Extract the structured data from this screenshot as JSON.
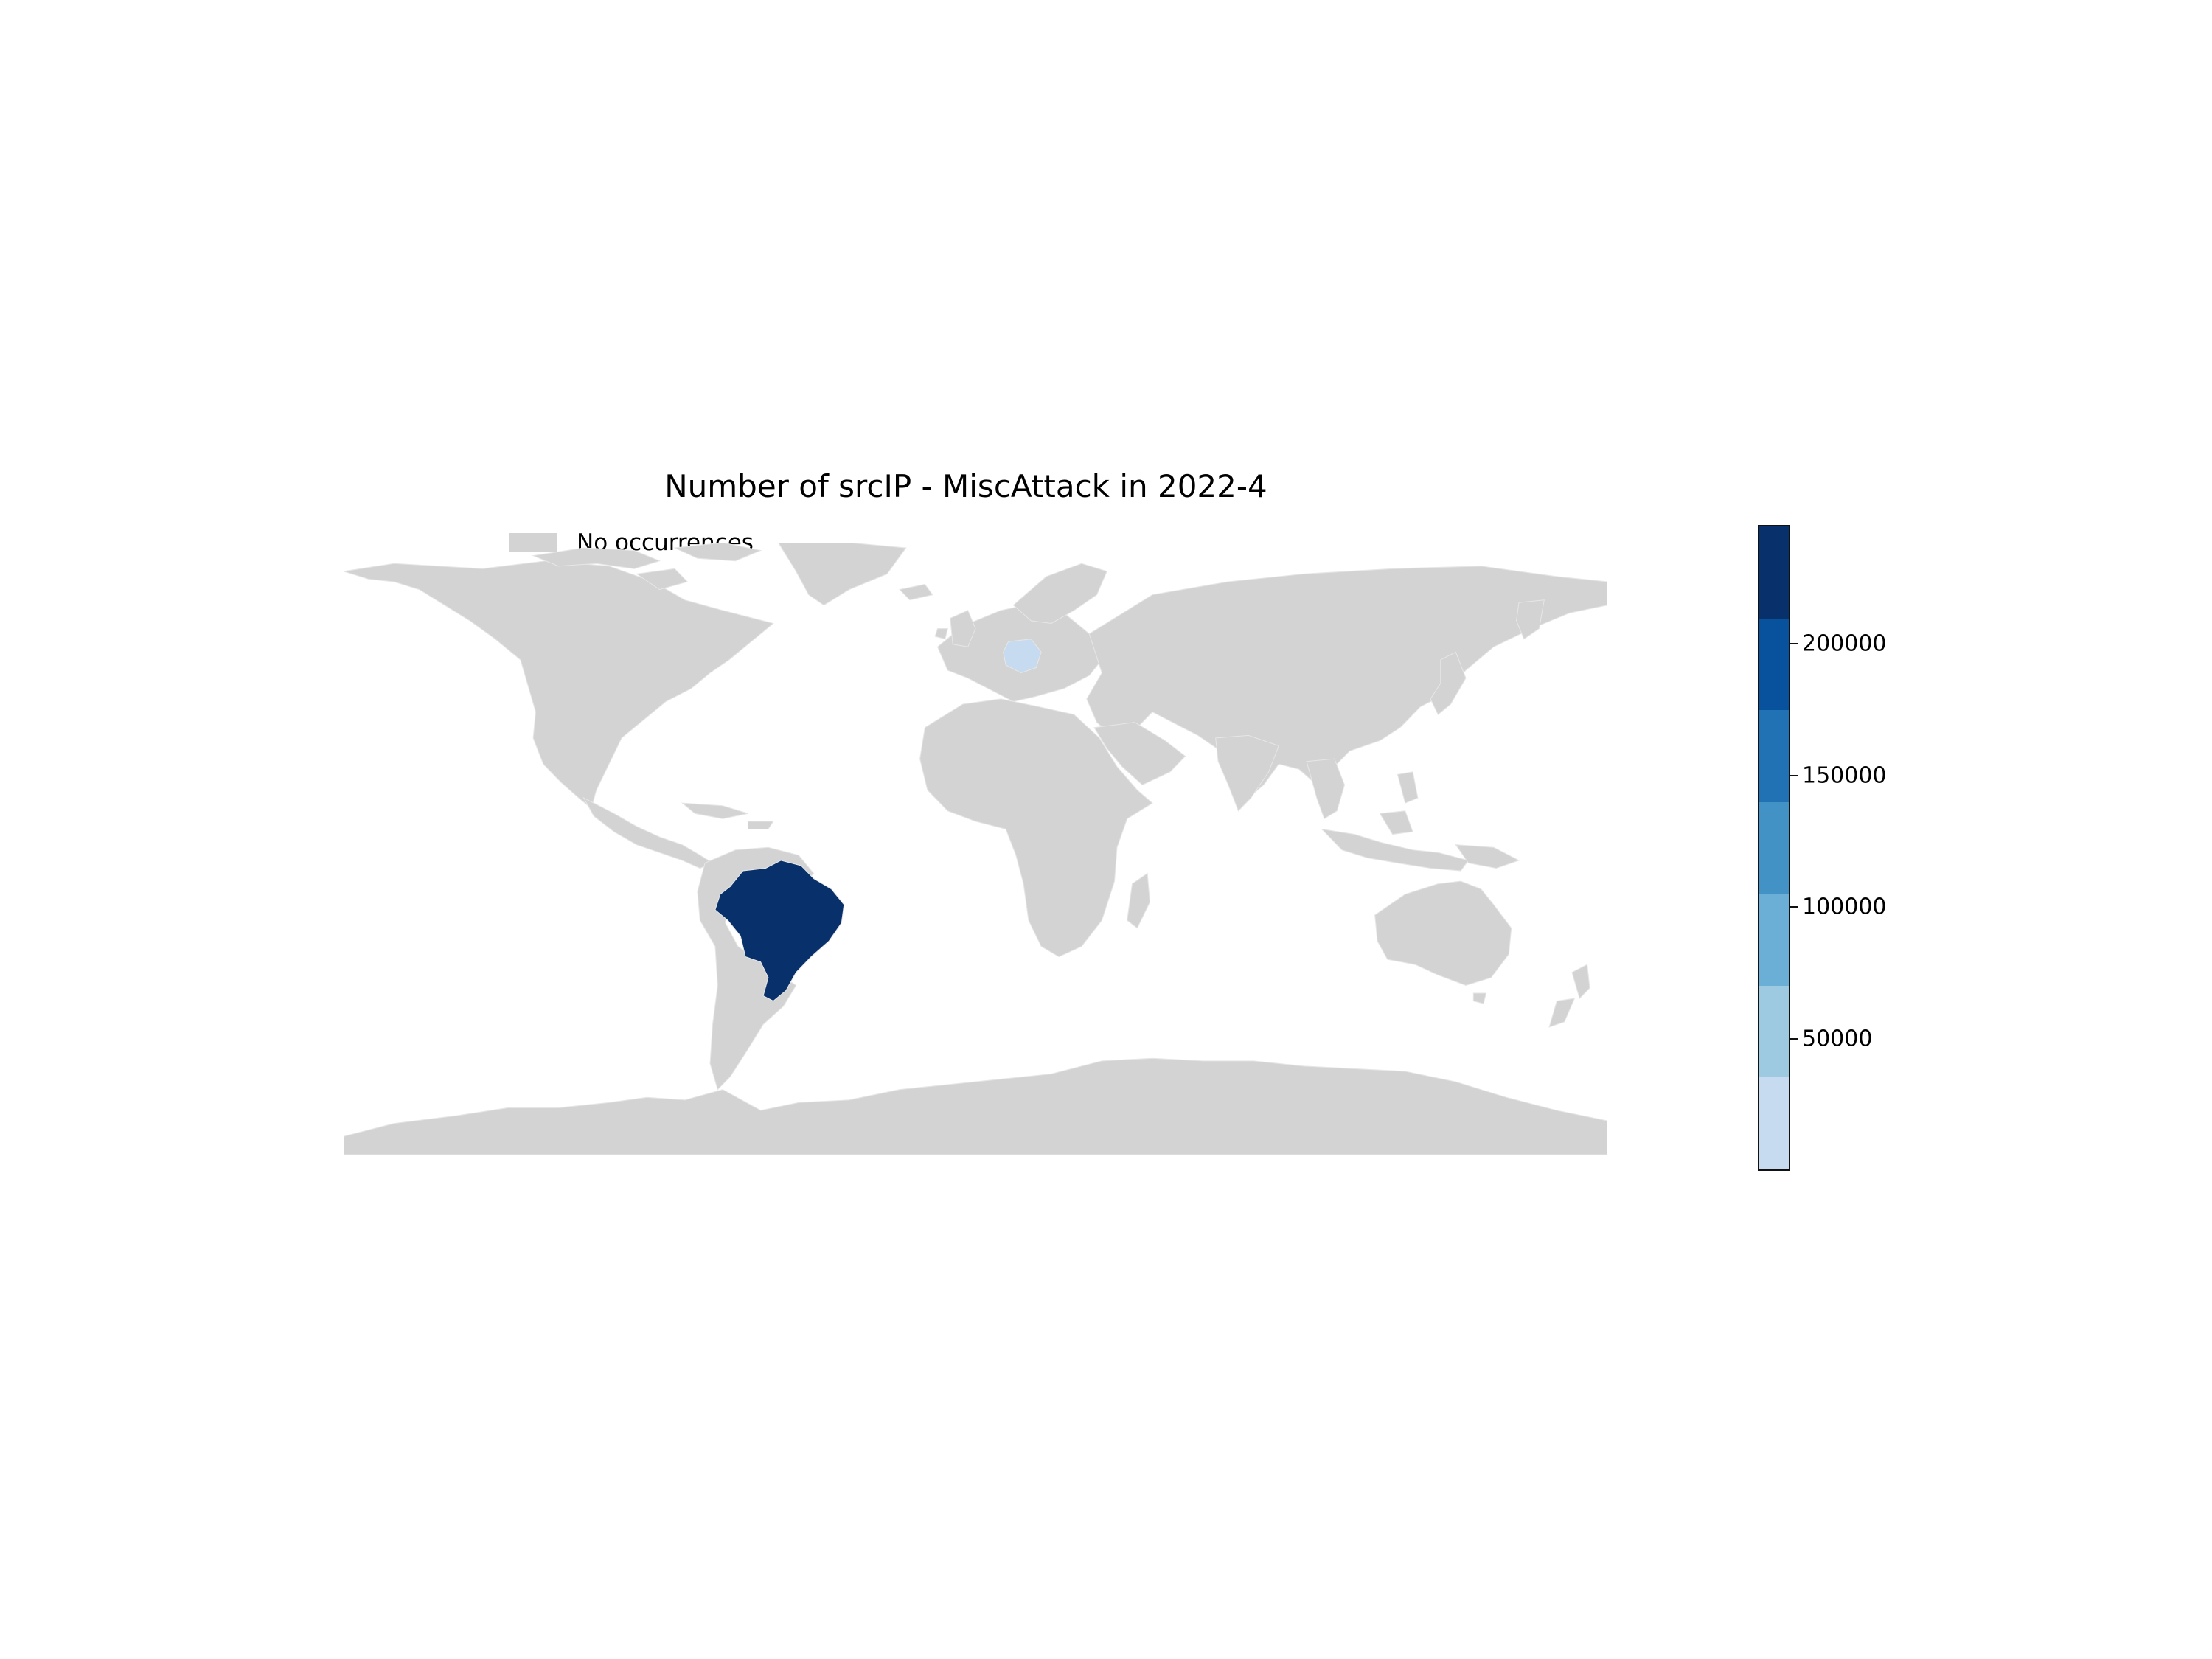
{
  "title": "Number of srcIP - MiscAttack in 2022-4",
  "legend": {
    "no_data_label": "No occurrences",
    "no_data_color": "#d3d3d3"
  },
  "map": {
    "land_color": "#d3d3d3",
    "highlighted": [
      {
        "country": "Brazil",
        "color": "#08306b"
      },
      {
        "country": "Germany",
        "color": "#c6dbef"
      }
    ]
  },
  "colorbar": {
    "colors": [
      "#c6dbef",
      "#9ecae1",
      "#6baed6",
      "#4292c6",
      "#2171b5",
      "#08519c",
      "#08306b"
    ],
    "ticks": [
      {
        "value": 50000,
        "label": "50000"
      },
      {
        "value": 100000,
        "label": "100000"
      },
      {
        "value": 150000,
        "label": "150000"
      },
      {
        "value": 200000,
        "label": "200000"
      }
    ],
    "range": [
      0,
      245000
    ]
  }
}
